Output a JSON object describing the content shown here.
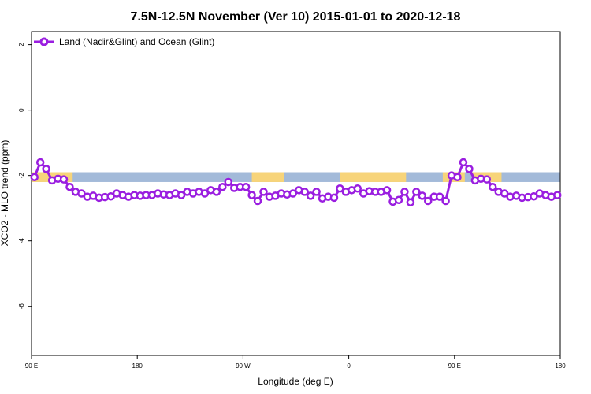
{
  "chart_data": {
    "type": "line",
    "title": "7.5N-12.5N November (Ver 10)   2015-01-01 to 2020-12-18",
    "xlabel": "Longitude (deg E)",
    "ylabel": "XCO2 - MLO trend (ppm)",
    "xlim": [
      90,
      450
    ],
    "ylim": [
      -7.5,
      2.4
    ],
    "x_ticks": [
      {
        "value": 90,
        "label": "90 E"
      },
      {
        "value": 162,
        "label": "180"
      },
      {
        "value": 234,
        "label": "90 W"
      },
      {
        "value": 306,
        "label": "0"
      },
      {
        "value": 378,
        "label": "90 E"
      },
      {
        "value": 450,
        "label": "180"
      }
    ],
    "y_ticks": [
      {
        "value": 2,
        "label": "2"
      },
      {
        "value": 0,
        "label": "0"
      },
      {
        "value": -2,
        "label": "-2"
      },
      {
        "value": -4,
        "label": "-4"
      },
      {
        "value": -6,
        "label": "-6"
      }
    ],
    "grid": false,
    "legend_position": "top-left",
    "band": {
      "ymin": -2.2,
      "ymax": -1.9,
      "ocean_color": "#a3bad9",
      "land_color": "#f7d47a"
    },
    "land_ranges": [
      [
        90,
        118
      ],
      [
        240,
        262
      ],
      [
        300,
        345
      ],
      [
        370,
        385
      ],
      [
        390,
        410
      ]
    ],
    "series": [
      {
        "name": "Land (Nadir&Glint) and Ocean (Glint)",
        "color": "#9a1ee0",
        "x": [
          92,
          96,
          100,
          104,
          108,
          112,
          116,
          120,
          124,
          128,
          132,
          136,
          140,
          144,
          148,
          152,
          156,
          160,
          164,
          168,
          172,
          176,
          180,
          184,
          188,
          192,
          196,
          200,
          204,
          208,
          212,
          216,
          220,
          224,
          228,
          232,
          236,
          240,
          244,
          248,
          252,
          256,
          260,
          264,
          268,
          272,
          276,
          280,
          284,
          288,
          292,
          296,
          300,
          304,
          308,
          312,
          316,
          320,
          324,
          328,
          332,
          336,
          340,
          344,
          348,
          352,
          356,
          360,
          364,
          368,
          372,
          376,
          380,
          384,
          388,
          392,
          396,
          400,
          404,
          408,
          412,
          416,
          420,
          424,
          428,
          432,
          436,
          440,
          444,
          448
        ],
        "values": [
          -2.05,
          -1.6,
          -1.8,
          -2.15,
          -2.1,
          -2.12,
          -2.35,
          -2.5,
          -2.55,
          -2.65,
          -2.62,
          -2.68,
          -2.66,
          -2.64,
          -2.55,
          -2.6,
          -2.65,
          -2.6,
          -2.62,
          -2.6,
          -2.6,
          -2.55,
          -2.58,
          -2.6,
          -2.55,
          -2.6,
          -2.5,
          -2.55,
          -2.5,
          -2.55,
          -2.45,
          -2.5,
          -2.35,
          -2.2,
          -2.38,
          -2.35,
          -2.35,
          -2.6,
          -2.78,
          -2.5,
          -2.65,
          -2.62,
          -2.55,
          -2.58,
          -2.55,
          -2.45,
          -2.5,
          -2.62,
          -2.5,
          -2.7,
          -2.65,
          -2.68,
          -2.4,
          -2.5,
          -2.45,
          -2.4,
          -2.55,
          -2.48,
          -2.5,
          -2.5,
          -2.45,
          -2.8,
          -2.75,
          -2.5,
          -2.82,
          -2.5,
          -2.62,
          -2.78,
          -2.65,
          -2.65,
          -2.78,
          -2.0,
          -2.05,
          -1.6,
          -1.8,
          -2.15,
          -2.1,
          -2.12,
          -2.35,
          -2.5,
          -2.55,
          -2.65,
          -2.62,
          -2.68,
          -2.66,
          -2.64,
          -2.55,
          -2.6,
          -2.65,
          -2.6
        ]
      }
    ]
  }
}
